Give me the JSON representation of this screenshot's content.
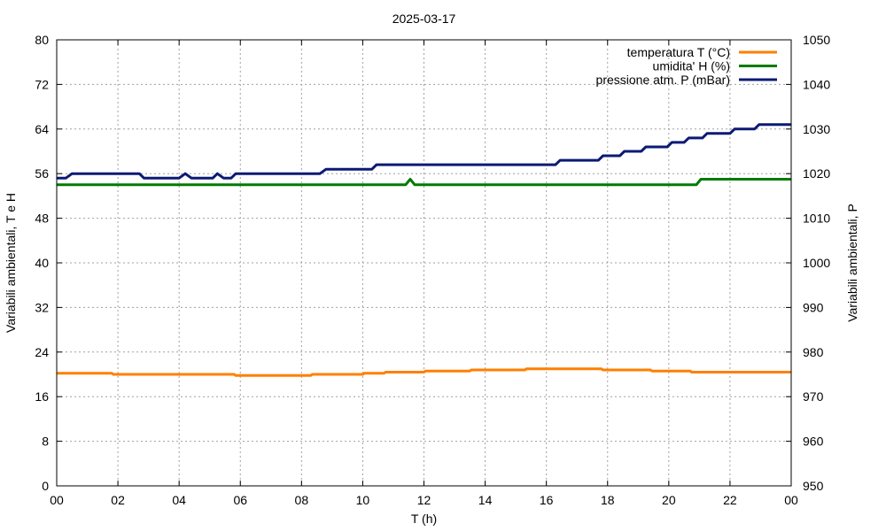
{
  "chart_data": {
    "type": "line",
    "title": "2025-03-17",
    "xlabel": "T (h)",
    "ylabel_left": "Variabili ambientali, T e H",
    "ylabel_right": "Variabili ambientali, P",
    "x_range": [
      0,
      24
    ],
    "y_left_range": [
      0,
      80
    ],
    "y_right_range": [
      950,
      1050
    ],
    "x_tick_labels": [
      "00",
      "02",
      "04",
      "06",
      "08",
      "10",
      "12",
      "14",
      "16",
      "18",
      "20",
      "22",
      "00"
    ],
    "y_left_ticks": [
      0,
      8,
      16,
      24,
      32,
      40,
      48,
      56,
      64,
      72,
      80
    ],
    "y_right_ticks": [
      950,
      960,
      970,
      980,
      990,
      1000,
      1010,
      1020,
      1030,
      1040,
      1050
    ],
    "grid": true,
    "legend_position": "top-right",
    "series": [
      {
        "name": "temperatura T (°C)",
        "axis": "left",
        "color": "#ff7f00",
        "points": [
          [
            0,
            20.2
          ],
          [
            1.8,
            20.2
          ],
          [
            1.85,
            20.0
          ],
          [
            5.8,
            20.0
          ],
          [
            5.85,
            19.8
          ],
          [
            8.3,
            19.8
          ],
          [
            8.35,
            20.0
          ],
          [
            10.0,
            20.0
          ],
          [
            10.05,
            20.2
          ],
          [
            10.7,
            20.2
          ],
          [
            10.75,
            20.4
          ],
          [
            12.0,
            20.4
          ],
          [
            12.05,
            20.6
          ],
          [
            13.5,
            20.6
          ],
          [
            13.55,
            20.8
          ],
          [
            15.3,
            20.8
          ],
          [
            15.35,
            21.0
          ],
          [
            17.8,
            21.0
          ],
          [
            17.85,
            20.8
          ],
          [
            19.4,
            20.8
          ],
          [
            19.45,
            20.6
          ],
          [
            20.7,
            20.6
          ],
          [
            20.75,
            20.4
          ],
          [
            24,
            20.4
          ]
        ]
      },
      {
        "name": "umidita' H (%)",
        "axis": "left",
        "color": "#007a00",
        "points": [
          [
            0,
            54.0
          ],
          [
            11.4,
            54.0
          ],
          [
            11.55,
            55.0
          ],
          [
            11.7,
            54.0
          ],
          [
            20.9,
            54.0
          ],
          [
            21.05,
            55.0
          ],
          [
            24,
            55.0
          ]
        ]
      },
      {
        "name": "pressione atm. P (mBar)",
        "axis": "right",
        "color": "#0b1a73",
        "points": [
          [
            0,
            1019
          ],
          [
            0.3,
            1019
          ],
          [
            0.5,
            1020
          ],
          [
            2.7,
            1020
          ],
          [
            2.85,
            1019
          ],
          [
            4.0,
            1019
          ],
          [
            4.2,
            1020
          ],
          [
            4.4,
            1019
          ],
          [
            5.1,
            1019
          ],
          [
            5.25,
            1020
          ],
          [
            5.45,
            1019
          ],
          [
            5.7,
            1019
          ],
          [
            5.85,
            1020
          ],
          [
            8.6,
            1020
          ],
          [
            8.8,
            1021
          ],
          [
            10.3,
            1021
          ],
          [
            10.45,
            1022
          ],
          [
            16.3,
            1022
          ],
          [
            16.45,
            1023
          ],
          [
            17.7,
            1023
          ],
          [
            17.85,
            1024
          ],
          [
            18.4,
            1024
          ],
          [
            18.55,
            1025
          ],
          [
            19.1,
            1025
          ],
          [
            19.25,
            1026
          ],
          [
            19.95,
            1026
          ],
          [
            20.1,
            1027
          ],
          [
            20.5,
            1027
          ],
          [
            20.65,
            1028
          ],
          [
            21.1,
            1028
          ],
          [
            21.25,
            1029
          ],
          [
            22.0,
            1029
          ],
          [
            22.15,
            1030
          ],
          [
            22.8,
            1030
          ],
          [
            22.95,
            1031
          ],
          [
            24,
            1031
          ]
        ]
      }
    ]
  }
}
